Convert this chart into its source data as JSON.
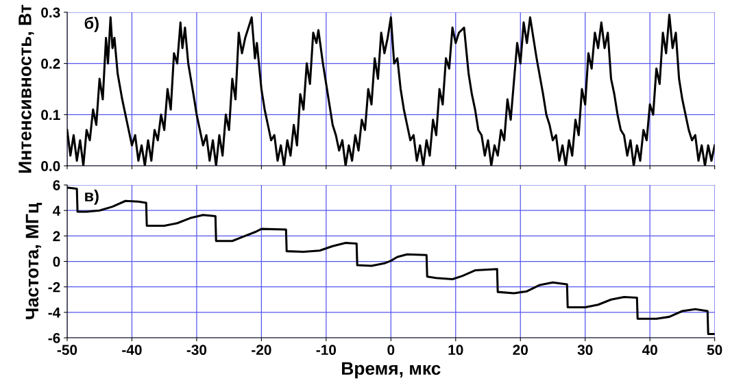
{
  "chart_data": [
    {
      "type": "line",
      "ylabel": "Интенсивность, Вт",
      "annotations": [
        "б)"
      ],
      "grid": true,
      "tick_labels": "y",
      "marker": "none",
      "line_style": "solid",
      "xlim": [
        -50,
        50
      ],
      "xticks": [
        -50,
        -40,
        -30,
        -20,
        -10,
        0,
        10,
        20,
        30,
        40,
        50
      ],
      "ylim": [
        0,
        0.3
      ],
      "yticks": [
        {
          "value": 0,
          "label": "0.0"
        },
        0.1,
        0.2,
        0.3
      ],
      "series": [
        {
          "color": "#000000",
          "x": [
            -50,
            -49.5,
            -49,
            -48.5,
            -48,
            -47.5,
            -47,
            -46.5,
            -46,
            -45.5,
            -45,
            -44.5,
            -44,
            -43.7,
            -43.3,
            -43,
            -42.7,
            -42.2,
            -41.5,
            -41,
            -40.5,
            -40,
            -39.5,
            -39,
            -38.5,
            -38,
            -37.5,
            -37,
            -36.5,
            -36,
            -35.5,
            -35,
            -34.5,
            -34,
            -33.5,
            -33,
            -32.5,
            -32.2,
            -31.8,
            -31.3,
            -30.5,
            -30,
            -29.5,
            -29,
            -28.5,
            -28,
            -27.5,
            -27,
            -26.5,
            -26,
            -25.5,
            -25,
            -24.5,
            -24,
            -23.5,
            -23,
            -22.5,
            -21.5,
            -21,
            -20.7,
            -20,
            -19.5,
            -19,
            -18.5,
            -18,
            -17.5,
            -17,
            -16.5,
            -16,
            -15.5,
            -15,
            -14.5,
            -14,
            -13.5,
            -13,
            -12.5,
            -12,
            -11.5,
            -11.2,
            -10.5,
            -10,
            -9.5,
            -9,
            -8.5,
            -8,
            -7.5,
            -7,
            -6.5,
            -6,
            -5.5,
            -5,
            -4.5,
            -4,
            -3.5,
            -3,
            -2.5,
            -2,
            -1.5,
            -1,
            -0.5,
            0,
            0.5,
            1,
            1.5,
            2,
            2.5,
            3,
            3.5,
            4,
            4.5,
            5,
            5.5,
            6,
            6.5,
            7,
            7.5,
            8,
            8.5,
            9,
            9.5,
            10,
            10.5,
            11.3,
            12,
            12.5,
            13,
            13.5,
            14,
            14.5,
            15,
            15.5,
            16,
            16.5,
            17,
            17.5,
            18,
            18.5,
            19.5,
            20,
            20.5,
            21,
            21.5,
            22,
            22.5,
            23.5,
            24,
            24.5,
            25,
            25.5,
            26,
            26.5,
            27,
            27.5,
            28,
            28.5,
            29,
            29.5,
            30,
            30.5,
            31,
            31.5,
            32,
            32.5,
            33,
            33.5,
            34,
            34.5,
            35,
            35.5,
            36,
            36.5,
            37,
            37.5,
            38,
            38.5,
            39,
            39.5,
            40,
            40.5,
            41,
            41.5,
            42,
            42.5,
            43,
            43.5,
            44,
            44.5,
            45,
            45.5,
            46,
            46.5,
            47,
            47.5,
            48,
            48.5,
            49,
            49.5,
            50
          ],
          "values": [
            0.07,
            0.02,
            0.06,
            0.01,
            0.05,
            0.0,
            0.07,
            0.05,
            0.11,
            0.08,
            0.17,
            0.13,
            0.25,
            0.2,
            0.29,
            0.23,
            0.25,
            0.18,
            0.13,
            0.1,
            0.07,
            0.04,
            0.06,
            0.01,
            0.04,
            0.0,
            0.05,
            0.01,
            0.07,
            0.05,
            0.1,
            0.07,
            0.15,
            0.11,
            0.22,
            0.2,
            0.28,
            0.23,
            0.27,
            0.2,
            0.14,
            0.1,
            0.07,
            0.04,
            0.06,
            0.01,
            0.05,
            0.0,
            0.06,
            0.02,
            0.1,
            0.07,
            0.17,
            0.13,
            0.26,
            0.22,
            0.25,
            0.29,
            0.21,
            0.24,
            0.15,
            0.11,
            0.08,
            0.05,
            0.06,
            0.01,
            0.04,
            0.0,
            0.05,
            0.02,
            0.08,
            0.04,
            0.14,
            0.11,
            0.2,
            0.16,
            0.26,
            0.24,
            0.265,
            0.2,
            0.16,
            0.12,
            0.08,
            0.06,
            0.03,
            0.05,
            0.0,
            0.04,
            0.01,
            0.06,
            0.03,
            0.09,
            0.07,
            0.15,
            0.12,
            0.21,
            0.17,
            0.26,
            0.22,
            0.25,
            0.29,
            0.2,
            0.21,
            0.15,
            0.11,
            0.08,
            0.05,
            0.06,
            0.01,
            0.04,
            0.0,
            0.05,
            0.02,
            0.09,
            0.06,
            0.15,
            0.12,
            0.21,
            0.19,
            0.27,
            0.24,
            0.26,
            0.27,
            0.18,
            0.14,
            0.11,
            0.07,
            0.06,
            0.02,
            0.05,
            0.0,
            0.04,
            0.02,
            0.07,
            0.05,
            0.13,
            0.09,
            0.24,
            0.2,
            0.28,
            0.24,
            0.29,
            0.25,
            0.21,
            0.14,
            0.1,
            0.08,
            0.05,
            0.06,
            0.01,
            0.04,
            0.0,
            0.05,
            0.02,
            0.09,
            0.06,
            0.15,
            0.12,
            0.22,
            0.19,
            0.26,
            0.23,
            0.28,
            0.23,
            0.26,
            0.17,
            0.14,
            0.1,
            0.07,
            0.06,
            0.02,
            0.05,
            0.0,
            0.04,
            0.01,
            0.07,
            0.05,
            0.12,
            0.1,
            0.19,
            0.16,
            0.26,
            0.22,
            0.295,
            0.23,
            0.26,
            0.17,
            0.13,
            0.1,
            0.07,
            0.05,
            0.06,
            0.01,
            0.04,
            0.0,
            0.04,
            0.01,
            0.04
          ]
        }
      ]
    },
    {
      "type": "line",
      "ylabel": "Частота, МГц",
      "xlabel": "Время, мкс",
      "annotations": [
        "в)"
      ],
      "grid": true,
      "marker": "none",
      "line_style": "solid",
      "xlim": [
        -50,
        50
      ],
      "xticks": [
        -50,
        -40,
        -30,
        -20,
        -10,
        0,
        10,
        20,
        30,
        40,
        50
      ],
      "ylim": [
        -6,
        6
      ],
      "yticks": [
        -6,
        -4,
        -2,
        0,
        2,
        4,
        6
      ],
      "series": [
        {
          "color": "#000000",
          "x": [
            -50,
            -48.5,
            -48.4,
            -47,
            -45,
            -43,
            -41,
            -39,
            -37.8,
            -37.7,
            -35,
            -33,
            -31,
            -29,
            -27.1,
            -27.0,
            -24.5,
            -23,
            -21,
            -20,
            -16.2,
            -16.1,
            -13.5,
            -11,
            -9,
            -7,
            -5.3,
            -5.2,
            -3,
            -1,
            0,
            1,
            2.5,
            5.5,
            5.6,
            7,
            9.5,
            11,
            13,
            16.4,
            16.5,
            19,
            21,
            23,
            25,
            27.2,
            27.3,
            30,
            32,
            34,
            36,
            38,
            38.1,
            41,
            43,
            45,
            47,
            48.9,
            49,
            50
          ],
          "values": [
            5.8,
            5.7,
            3.9,
            3.9,
            4.0,
            4.3,
            4.75,
            4.7,
            4.6,
            2.8,
            2.8,
            3.0,
            3.4,
            3.65,
            3.55,
            1.6,
            1.6,
            1.9,
            2.3,
            2.55,
            2.5,
            0.8,
            0.75,
            0.85,
            1.2,
            1.45,
            1.4,
            -0.3,
            -0.35,
            -0.15,
            0.05,
            0.35,
            0.55,
            0.5,
            -1.2,
            -1.3,
            -1.4,
            -1.15,
            -0.7,
            -0.6,
            -2.4,
            -2.5,
            -2.35,
            -1.85,
            -1.65,
            -1.8,
            -3.6,
            -3.6,
            -3.4,
            -3.0,
            -2.8,
            -2.85,
            -4.5,
            -4.5,
            -4.35,
            -3.9,
            -3.75,
            -3.9,
            -5.7,
            -5.7
          ]
        }
      ]
    }
  ]
}
